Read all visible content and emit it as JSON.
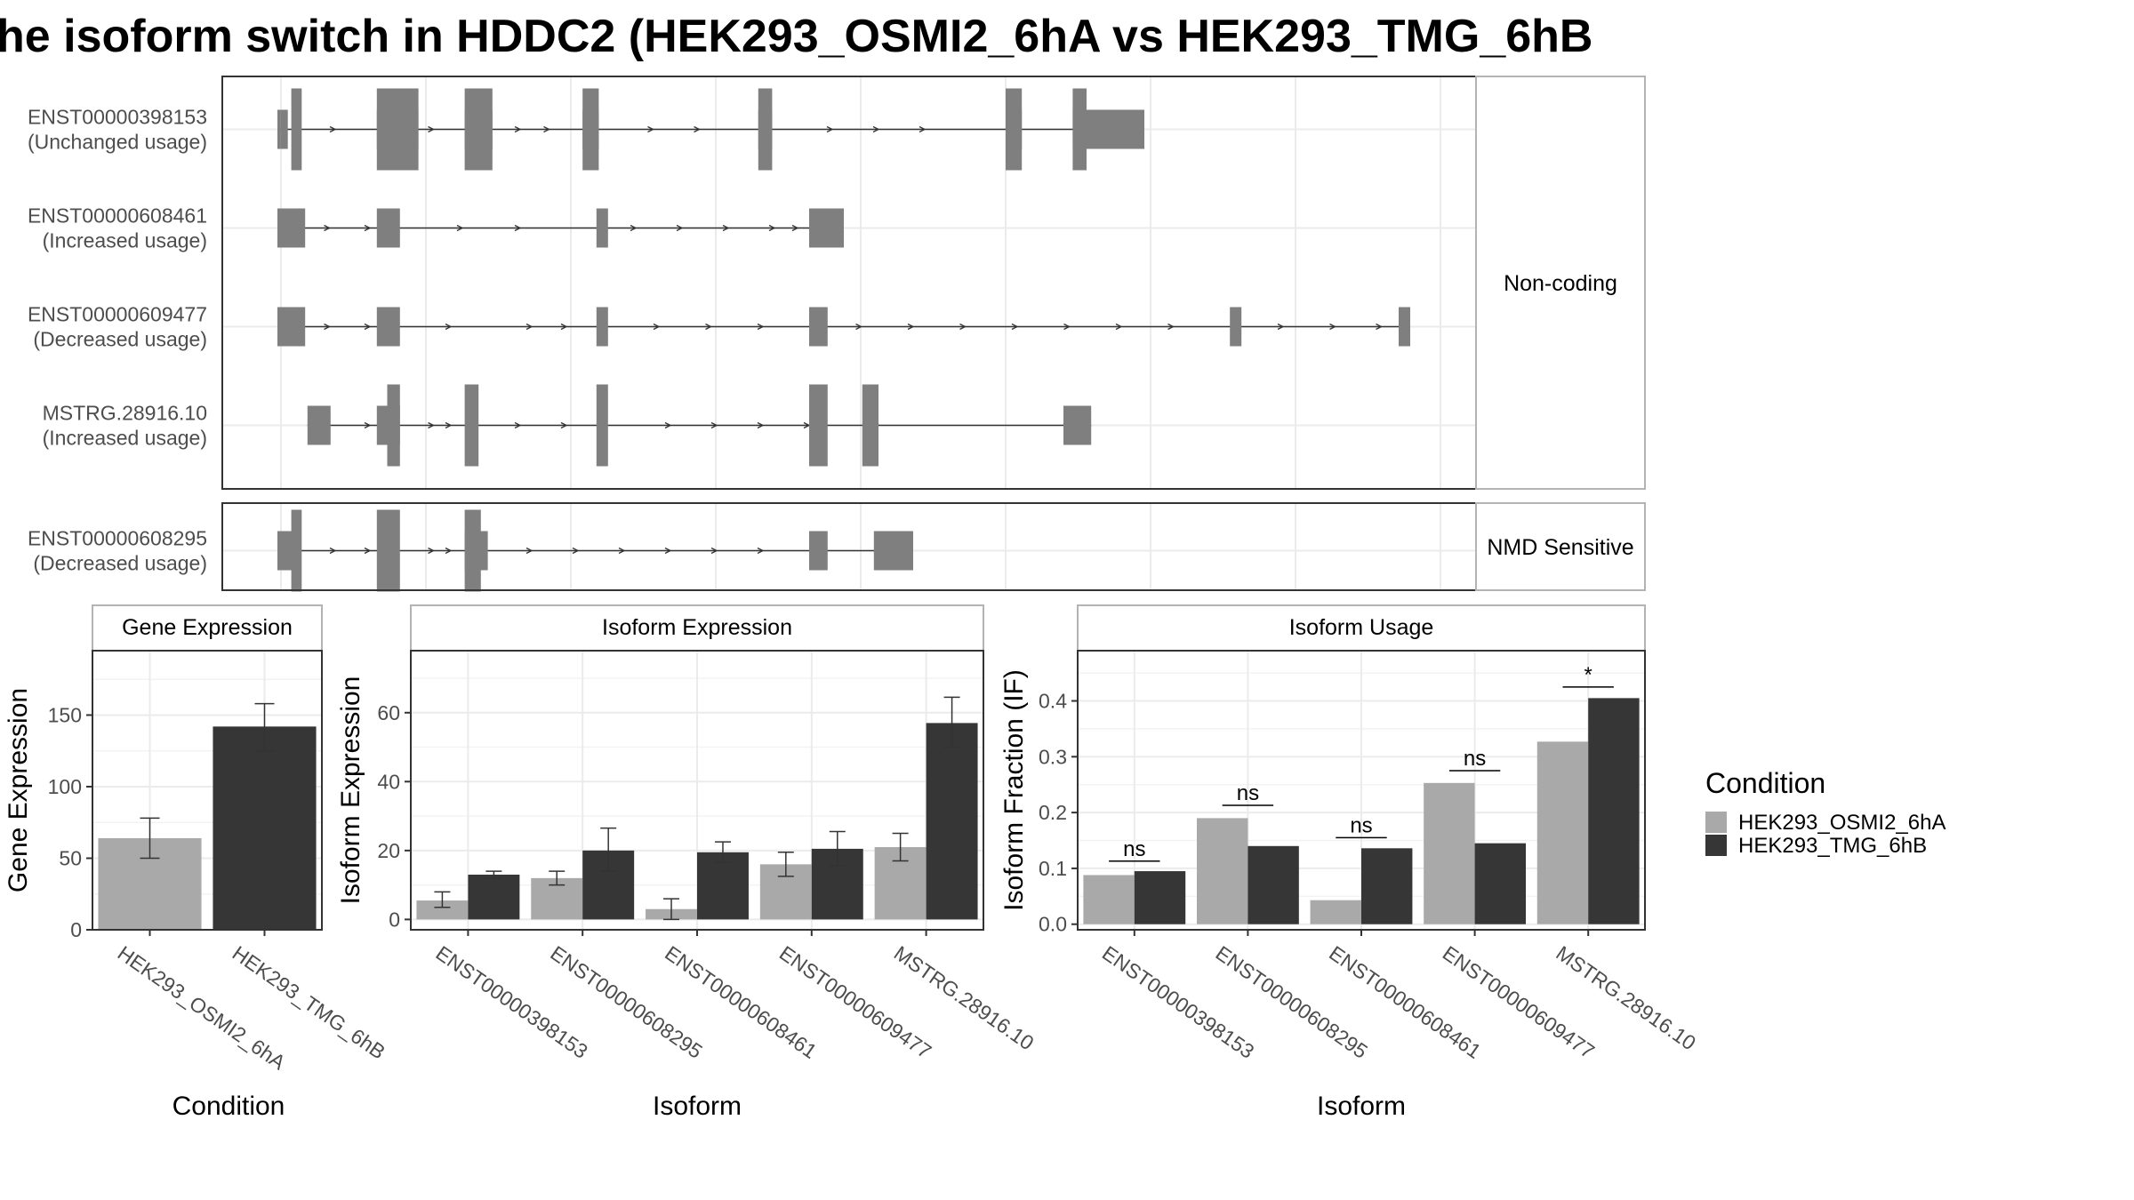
{
  "title": "he isoform switch in HDDC2 (HEK293_OSMI2_6hA vs HEK293_TMG_6hB",
  "structure": {
    "groups": [
      {
        "label": "Non-coding",
        "transcripts": [
          {
            "id": "ENST00000398153",
            "usage": "(Unchanged usage)",
            "exons": [
              [
                0,
                0.03
              ],
              [
                0.03,
                0.09
              ],
              [
                0.86,
                1.22
              ],
              [
                1.62,
                1.86
              ],
              [
                2.64,
                2.78
              ],
              [
                4.16,
                4.28
              ],
              [
                6.3,
                6.44
              ],
              [
                6.88,
                7.5
              ]
            ],
            "tall": [
              [
                0.12,
                0.21
              ],
              [
                0.86,
                1.22
              ],
              [
                1.62,
                1.86
              ],
              [
                2.64,
                2.78
              ],
              [
                4.16,
                4.28
              ],
              [
                6.3,
                6.44
              ],
              [
                6.88,
                7.0
              ]
            ],
            "arrows": [
              0.5,
              1.35,
              2.1,
              2.35,
              3.25,
              3.65,
              4.8,
              5.2,
              5.6
            ]
          },
          {
            "id": "ENST00000608461",
            "usage": "(Increased usage)",
            "exons": [
              [
                0,
                0.24
              ],
              [
                0.86,
                1.06
              ],
              [
                2.76,
                2.86
              ],
              [
                4.6,
                4.9
              ]
            ],
            "tall": [],
            "arrows": [
              0.45,
              0.8,
              1.6,
              2.1,
              3.1,
              3.5,
              3.9,
              4.3,
              4.5
            ]
          },
          {
            "id": "ENST00000609477",
            "usage": "(Decreased usage)",
            "exons": [
              [
                0,
                0.24
              ],
              [
                0.86,
                1.06
              ],
              [
                2.76,
                2.86
              ],
              [
                4.6,
                4.76
              ],
              [
                8.24,
                8.34
              ],
              [
                9.7,
                9.8
              ]
            ],
            "tall": [],
            "arrows": [
              0.45,
              0.8,
              1.5,
              2.2,
              2.5,
              3.3,
              3.75,
              4.2,
              5.05,
              5.5,
              5.95,
              6.4,
              6.85,
              7.3,
              7.75,
              8.7,
              9.15,
              9.55
            ]
          },
          {
            "id": "MSTRG.28916.10",
            "usage": "(Increased usage)",
            "exons": [
              [
                0.26,
                0.46
              ],
              [
                0.86,
                1.06
              ],
              [
                6.8,
                7.04
              ]
            ],
            "tall": [
              [
                0.95,
                1.06
              ],
              [
                1.62,
                1.74
              ],
              [
                2.76,
                2.86
              ],
              [
                4.6,
                4.76
              ],
              [
                5.06,
                5.2
              ]
            ],
            "arrows": [
              0.8,
              1.35,
              1.5,
              2.1,
              2.5,
              3.4,
              3.8,
              4.2,
              4.6
            ]
          }
        ]
      },
      {
        "label": "NMD Sensitive",
        "transcripts": [
          {
            "id": "ENST00000608295",
            "usage": "(Decreased usage)",
            "exons": [
              [
                0,
                0.16
              ],
              [
                1.62,
                1.82
              ],
              [
                4.6,
                4.76
              ],
              [
                5.16,
                5.5
              ]
            ],
            "tall": [
              [
                0.12,
                0.21
              ],
              [
                0.86,
                1.06
              ],
              [
                1.62,
                1.76
              ]
            ],
            "arrows": [
              0.5,
              0.8,
              1.35,
              1.5,
              2.2,
              2.6,
              3.0,
              3.4,
              3.8,
              4.2
            ]
          }
        ]
      }
    ]
  },
  "chart_data": [
    {
      "type": "bar",
      "strip": "Gene Expression",
      "xlabel": "Condition",
      "ylabel": "Gene Expression",
      "categories": [
        "HEK293_OSMI2_6hA",
        "HEK293_TMG_6hB"
      ],
      "values": [
        64,
        142
      ],
      "error": [
        [
          50,
          78
        ],
        [
          125,
          158
        ]
      ],
      "ylim": [
        0,
        195
      ],
      "yticks": [
        0,
        50,
        100,
        150
      ],
      "colors": [
        "#a9a9a9",
        "#363636"
      ]
    },
    {
      "type": "bar",
      "strip": "Isoform Expression",
      "xlabel": "Isoform",
      "ylabel": "Isoform Expression",
      "categories": [
        "ENST00000398153",
        "ENST00000608295",
        "ENST00000608461",
        "ENST00000609477",
        "MSTRG.28916.10"
      ],
      "series": [
        {
          "name": "HEK293_OSMI2_6hA",
          "values": [
            5.5,
            12,
            3,
            16,
            21
          ],
          "error": [
            [
              3.5,
              8
            ],
            [
              10,
              14
            ],
            [
              0,
              6
            ],
            [
              12.5,
              19.5
            ],
            [
              17,
              25
            ]
          ]
        },
        {
          "name": "HEK293_TMG_6hB",
          "values": [
            13,
            20,
            19.5,
            20.5,
            57
          ],
          "error": [
            [
              12,
              14
            ],
            [
              14,
              26.5
            ],
            [
              16.5,
              22.5
            ],
            [
              15.5,
              25.5
            ],
            [
              50,
              64.5
            ]
          ]
        }
      ],
      "ylim": [
        -3,
        78
      ],
      "yticks": [
        0,
        20,
        40,
        60
      ]
    },
    {
      "type": "bar",
      "strip": "Isoform Usage",
      "xlabel": "Isoform",
      "ylabel": "Isoform Fraction (IF)",
      "categories": [
        "ENST00000398153",
        "ENST00000608295",
        "ENST00000608461",
        "ENST00000609477",
        "MSTRG.28916.10"
      ],
      "series": [
        {
          "name": "HEK293_OSMI2_6hA",
          "values": [
            0.088,
            0.19,
            0.043,
            0.253,
            0.327
          ]
        },
        {
          "name": "HEK293_TMG_6hB",
          "values": [
            0.095,
            0.14,
            0.136,
            0.145,
            0.405
          ]
        }
      ],
      "significance": [
        "ns",
        "ns",
        "ns",
        "ns",
        "*"
      ],
      "sig_level": [
        0.113,
        0.213,
        0.155,
        0.275,
        0.425
      ],
      "ylim": [
        -0.01,
        0.49
      ],
      "yticks": [
        0.0,
        0.1,
        0.2,
        0.3,
        0.4
      ],
      "ytick_labels": [
        "0.0",
        "0.1",
        "0.2",
        "0.3",
        "0.4"
      ]
    }
  ],
  "legend": {
    "title": "Condition",
    "entries": [
      {
        "label": "HEK293_OSMI2_6hA",
        "color": "#a9a9a9"
      },
      {
        "label": "HEK293_TMG_6hB",
        "color": "#363636"
      }
    ]
  },
  "colors": {
    "exon": "#7f7f7f",
    "grid": "#ebebeb",
    "frame": "#333333",
    "strip_border": "#b3b3b3"
  }
}
